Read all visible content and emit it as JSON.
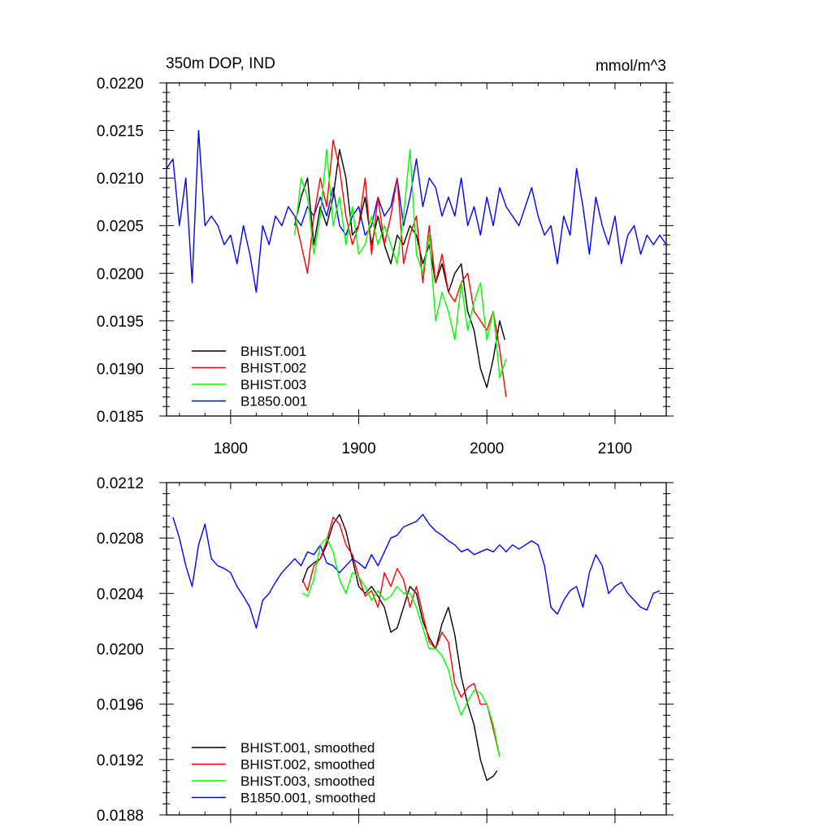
{
  "chart_data": [
    {
      "type": "line",
      "title": "350m DOP, IND",
      "units": "mmol/m^3",
      "xlim": [
        1750,
        2140
      ],
      "ylim": [
        0.0185,
        0.022
      ],
      "xticks": [
        1800,
        1900,
        2000,
        2100
      ],
      "xtick_labels": [
        "1800",
        "1900",
        "2000",
        "2100"
      ],
      "yticks": [
        0.0185,
        0.019,
        0.0195,
        0.02,
        0.0205,
        0.021,
        0.0215,
        0.022
      ],
      "ytick_labels": [
        "0.0185",
        "0.0190",
        "0.0195",
        "0.0200",
        "0.0205",
        "0.0210",
        "0.0215",
        "0.0220"
      ],
      "legend_placement": "bottom-left",
      "series": [
        {
          "name": "BHIST.001",
          "color": "#000000",
          "x": [
            1850,
            1855,
            1860,
            1865,
            1870,
            1875,
            1880,
            1885,
            1890,
            1895,
            1900,
            1905,
            1910,
            1915,
            1920,
            1925,
            1930,
            1935,
            1940,
            1945,
            1950,
            1955,
            1960,
            1965,
            1970,
            1975,
            1980,
            1985,
            1990,
            1995,
            2000,
            2005,
            2010,
            2014
          ],
          "y": [
            0.0205,
            0.0208,
            0.021,
            0.0203,
            0.0207,
            0.0205,
            0.0208,
            0.0213,
            0.021,
            0.0204,
            0.0205,
            0.0208,
            0.0203,
            0.0206,
            0.0203,
            0.0201,
            0.0204,
            0.0203,
            0.0205,
            0.0204,
            0.0201,
            0.0203,
            0.0199,
            0.0201,
            0.0198,
            0.02,
            0.0201,
            0.0196,
            0.0194,
            0.019,
            0.0188,
            0.0191,
            0.0195,
            0.0193
          ]
        },
        {
          "name": "BHIST.002",
          "color": "#ff0000",
          "x": [
            1850,
            1855,
            1860,
            1865,
            1870,
            1875,
            1880,
            1885,
            1890,
            1895,
            1900,
            1905,
            1910,
            1915,
            1920,
            1925,
            1930,
            1935,
            1940,
            1945,
            1950,
            1955,
            1960,
            1965,
            1970,
            1975,
            1980,
            1985,
            1990,
            1995,
            2000,
            2005,
            2010,
            2015
          ],
          "y": [
            0.0206,
            0.0203,
            0.02,
            0.0206,
            0.021,
            0.0207,
            0.0214,
            0.0211,
            0.0206,
            0.0203,
            0.0205,
            0.021,
            0.0202,
            0.0208,
            0.0203,
            0.0206,
            0.021,
            0.0201,
            0.0204,
            0.0206,
            0.0199,
            0.0205,
            0.0199,
            0.0202,
            0.0198,
            0.0197,
            0.0199,
            0.02,
            0.0196,
            0.0195,
            0.0194,
            0.0196,
            0.0192,
            0.0187
          ]
        },
        {
          "name": "BHIST.003",
          "color": "#00ff00",
          "x": [
            1850,
            1855,
            1860,
            1865,
            1870,
            1875,
            1880,
            1885,
            1890,
            1895,
            1900,
            1905,
            1910,
            1915,
            1920,
            1925,
            1930,
            1935,
            1940,
            1945,
            1950,
            1955,
            1960,
            1965,
            1970,
            1975,
            1980,
            1985,
            1990,
            1995,
            2000,
            2005,
            2010,
            2015
          ],
          "y": [
            0.0204,
            0.021,
            0.0208,
            0.0202,
            0.0206,
            0.0213,
            0.0205,
            0.0208,
            0.0203,
            0.0207,
            0.0202,
            0.0203,
            0.0206,
            0.0203,
            0.0205,
            0.0203,
            0.0201,
            0.0206,
            0.0213,
            0.0202,
            0.02,
            0.0204,
            0.0195,
            0.0198,
            0.0196,
            0.0193,
            0.0199,
            0.0194,
            0.0197,
            0.0199,
            0.0193,
            0.0196,
            0.0189,
            0.0191
          ]
        },
        {
          "name": "B1850.001",
          "color": "#0000ff",
          "x": [
            1750,
            1755,
            1760,
            1765,
            1770,
            1775,
            1780,
            1785,
            1790,
            1795,
            1800,
            1805,
            1810,
            1815,
            1820,
            1825,
            1830,
            1835,
            1840,
            1845,
            1850,
            1855,
            1860,
            1865,
            1870,
            1875,
            1880,
            1885,
            1890,
            1895,
            1900,
            1905,
            1910,
            1915,
            1920,
            1925,
            1930,
            1935,
            1940,
            1945,
            1950,
            1955,
            1960,
            1965,
            1970,
            1975,
            1980,
            1985,
            1990,
            1995,
            2000,
            2005,
            2010,
            2015,
            2020,
            2025,
            2030,
            2035,
            2040,
            2045,
            2050,
            2055,
            2060,
            2065,
            2070,
            2075,
            2080,
            2085,
            2090,
            2095,
            2100,
            2105,
            2110,
            2115,
            2120,
            2125,
            2130,
            2135,
            2140
          ],
          "y": [
            0.0211,
            0.0212,
            0.0205,
            0.021,
            0.0199,
            0.0215,
            0.0205,
            0.0206,
            0.0205,
            0.0203,
            0.0204,
            0.0201,
            0.0205,
            0.0202,
            0.0198,
            0.0205,
            0.0203,
            0.0206,
            0.0205,
            0.0207,
            0.0206,
            0.0205,
            0.0207,
            0.0206,
            0.0208,
            0.0206,
            0.0209,
            0.0205,
            0.0204,
            0.0206,
            0.0207,
            0.0204,
            0.0205,
            0.0208,
            0.0206,
            0.0207,
            0.021,
            0.0205,
            0.0208,
            0.0212,
            0.0207,
            0.021,
            0.0209,
            0.0206,
            0.0208,
            0.0206,
            0.021,
            0.0205,
            0.0207,
            0.0204,
            0.0208,
            0.0205,
            0.0209,
            0.0207,
            0.0206,
            0.0205,
            0.0207,
            0.0209,
            0.0206,
            0.0204,
            0.0205,
            0.0201,
            0.0206,
            0.0204,
            0.0211,
            0.0207,
            0.0202,
            0.0208,
            0.0205,
            0.0203,
            0.0206,
            0.0201,
            0.0204,
            0.0205,
            0.0202,
            0.0204,
            0.0203,
            0.0204,
            0.0203
          ]
        }
      ]
    },
    {
      "type": "line",
      "title": "",
      "xlim": [
        1750,
        2140
      ],
      "ylim": [
        0.0188,
        0.0212
      ],
      "xticks": [
        1800,
        1900,
        2000,
        2100
      ],
      "yticks": [
        0.0188,
        0.0192,
        0.0196,
        0.02,
        0.0204,
        0.0208,
        0.0212
      ],
      "ytick_labels": [
        "0.0188",
        "0.0192",
        "0.0196",
        "0.0200",
        "0.0204",
        "0.0208",
        "0.0212"
      ],
      "legend_placement": "bottom-left",
      "series": [
        {
          "name": "BHIST.001, smoothed",
          "color": "#000000",
          "x": [
            1856,
            1860,
            1865,
            1870,
            1875,
            1880,
            1885,
            1890,
            1895,
            1900,
            1905,
            1910,
            1915,
            1920,
            1925,
            1930,
            1935,
            1940,
            1945,
            1950,
            1955,
            1960,
            1965,
            1970,
            1975,
            1980,
            1985,
            1990,
            1995,
            2000,
            2005,
            2008
          ],
          "y": [
            0.02048,
            0.02058,
            0.02062,
            0.02065,
            0.02075,
            0.0209,
            0.02097,
            0.02085,
            0.02065,
            0.02045,
            0.0204,
            0.02045,
            0.02038,
            0.0203,
            0.02012,
            0.02015,
            0.0203,
            0.02045,
            0.0204,
            0.0202,
            0.02008,
            0.02,
            0.02018,
            0.0203,
            0.0201,
            0.0198,
            0.0196,
            0.01945,
            0.0192,
            0.01905,
            0.01908,
            0.01912
          ]
        },
        {
          "name": "BHIST.002, smoothed",
          "color": "#ff0000",
          "x": [
            1856,
            1860,
            1865,
            1870,
            1875,
            1880,
            1885,
            1890,
            1895,
            1900,
            1905,
            1910,
            1915,
            1920,
            1925,
            1930,
            1935,
            1940,
            1945,
            1950,
            1955,
            1960,
            1965,
            1970,
            1975,
            1980,
            1985,
            1990,
            1995,
            2000,
            2005,
            2010
          ],
          "y": [
            0.0205,
            0.02042,
            0.0206,
            0.02065,
            0.02078,
            0.02095,
            0.0209,
            0.02075,
            0.02068,
            0.02052,
            0.02038,
            0.02042,
            0.0203,
            0.02055,
            0.02045,
            0.02058,
            0.0205,
            0.0203,
            0.02045,
            0.02025,
            0.02005,
            0.02,
            0.02012,
            0.02005,
            0.01975,
            0.01965,
            0.01972,
            0.01975,
            0.0196,
            0.0196,
            0.01942,
            0.01922
          ]
        },
        {
          "name": "BHIST.003, smoothed",
          "color": "#00ff00",
          "x": [
            1856,
            1860,
            1865,
            1870,
            1875,
            1880,
            1885,
            1890,
            1895,
            1900,
            1905,
            1910,
            1915,
            1920,
            1925,
            1930,
            1935,
            1940,
            1945,
            1950,
            1955,
            1960,
            1965,
            1970,
            1975,
            1980,
            1985,
            1990,
            1995,
            2000,
            2005,
            2010
          ],
          "y": [
            0.0204,
            0.02038,
            0.0205,
            0.02075,
            0.0208,
            0.0207,
            0.0205,
            0.0204,
            0.02055,
            0.02052,
            0.02045,
            0.02035,
            0.02042,
            0.02035,
            0.02038,
            0.02045,
            0.0204,
            0.0204,
            0.0203,
            0.02015,
            0.02,
            0.02,
            0.01995,
            0.01985,
            0.01965,
            0.01952,
            0.01962,
            0.0197,
            0.01968,
            0.0196,
            0.01945,
            0.01922
          ]
        },
        {
          "name": "B1850.001, smoothed",
          "color": "#0000ff",
          "x": [
            1755,
            1760,
            1765,
            1770,
            1775,
            1780,
            1785,
            1790,
            1795,
            1800,
            1805,
            1810,
            1815,
            1820,
            1825,
            1830,
            1835,
            1840,
            1845,
            1850,
            1855,
            1860,
            1865,
            1870,
            1875,
            1880,
            1885,
            1890,
            1895,
            1900,
            1905,
            1910,
            1915,
            1920,
            1925,
            1930,
            1935,
            1940,
            1945,
            1950,
            1955,
            1960,
            1965,
            1970,
            1975,
            1980,
            1985,
            1990,
            1995,
            2000,
            2005,
            2010,
            2015,
            2020,
            2025,
            2030,
            2035,
            2040,
            2045,
            2050,
            2055,
            2060,
            2065,
            2070,
            2075,
            2080,
            2085,
            2090,
            2095,
            2100,
            2105,
            2110,
            2115,
            2120,
            2125,
            2130,
            2135
          ],
          "y": [
            0.02095,
            0.0208,
            0.0206,
            0.02045,
            0.02075,
            0.0209,
            0.02065,
            0.0206,
            0.02058,
            0.02055,
            0.02045,
            0.02038,
            0.0203,
            0.02015,
            0.02035,
            0.0204,
            0.02048,
            0.02055,
            0.0206,
            0.02065,
            0.0206,
            0.0207,
            0.02068,
            0.02075,
            0.02062,
            0.0206,
            0.02055,
            0.0206,
            0.02065,
            0.02062,
            0.02058,
            0.02068,
            0.0206,
            0.0207,
            0.0208,
            0.02082,
            0.02088,
            0.0209,
            0.02092,
            0.02097,
            0.0209,
            0.02085,
            0.02082,
            0.02078,
            0.02075,
            0.0207,
            0.02072,
            0.02068,
            0.0207,
            0.02072,
            0.0207,
            0.02075,
            0.0207,
            0.02075,
            0.02072,
            0.02075,
            0.02078,
            0.02075,
            0.0206,
            0.0203,
            0.02025,
            0.02035,
            0.02042,
            0.02045,
            0.0203,
            0.02055,
            0.02068,
            0.0206,
            0.0204,
            0.02045,
            0.02048,
            0.0204,
            0.02035,
            0.0203,
            0.02028,
            0.0204,
            0.02042
          ]
        }
      ]
    }
  ]
}
